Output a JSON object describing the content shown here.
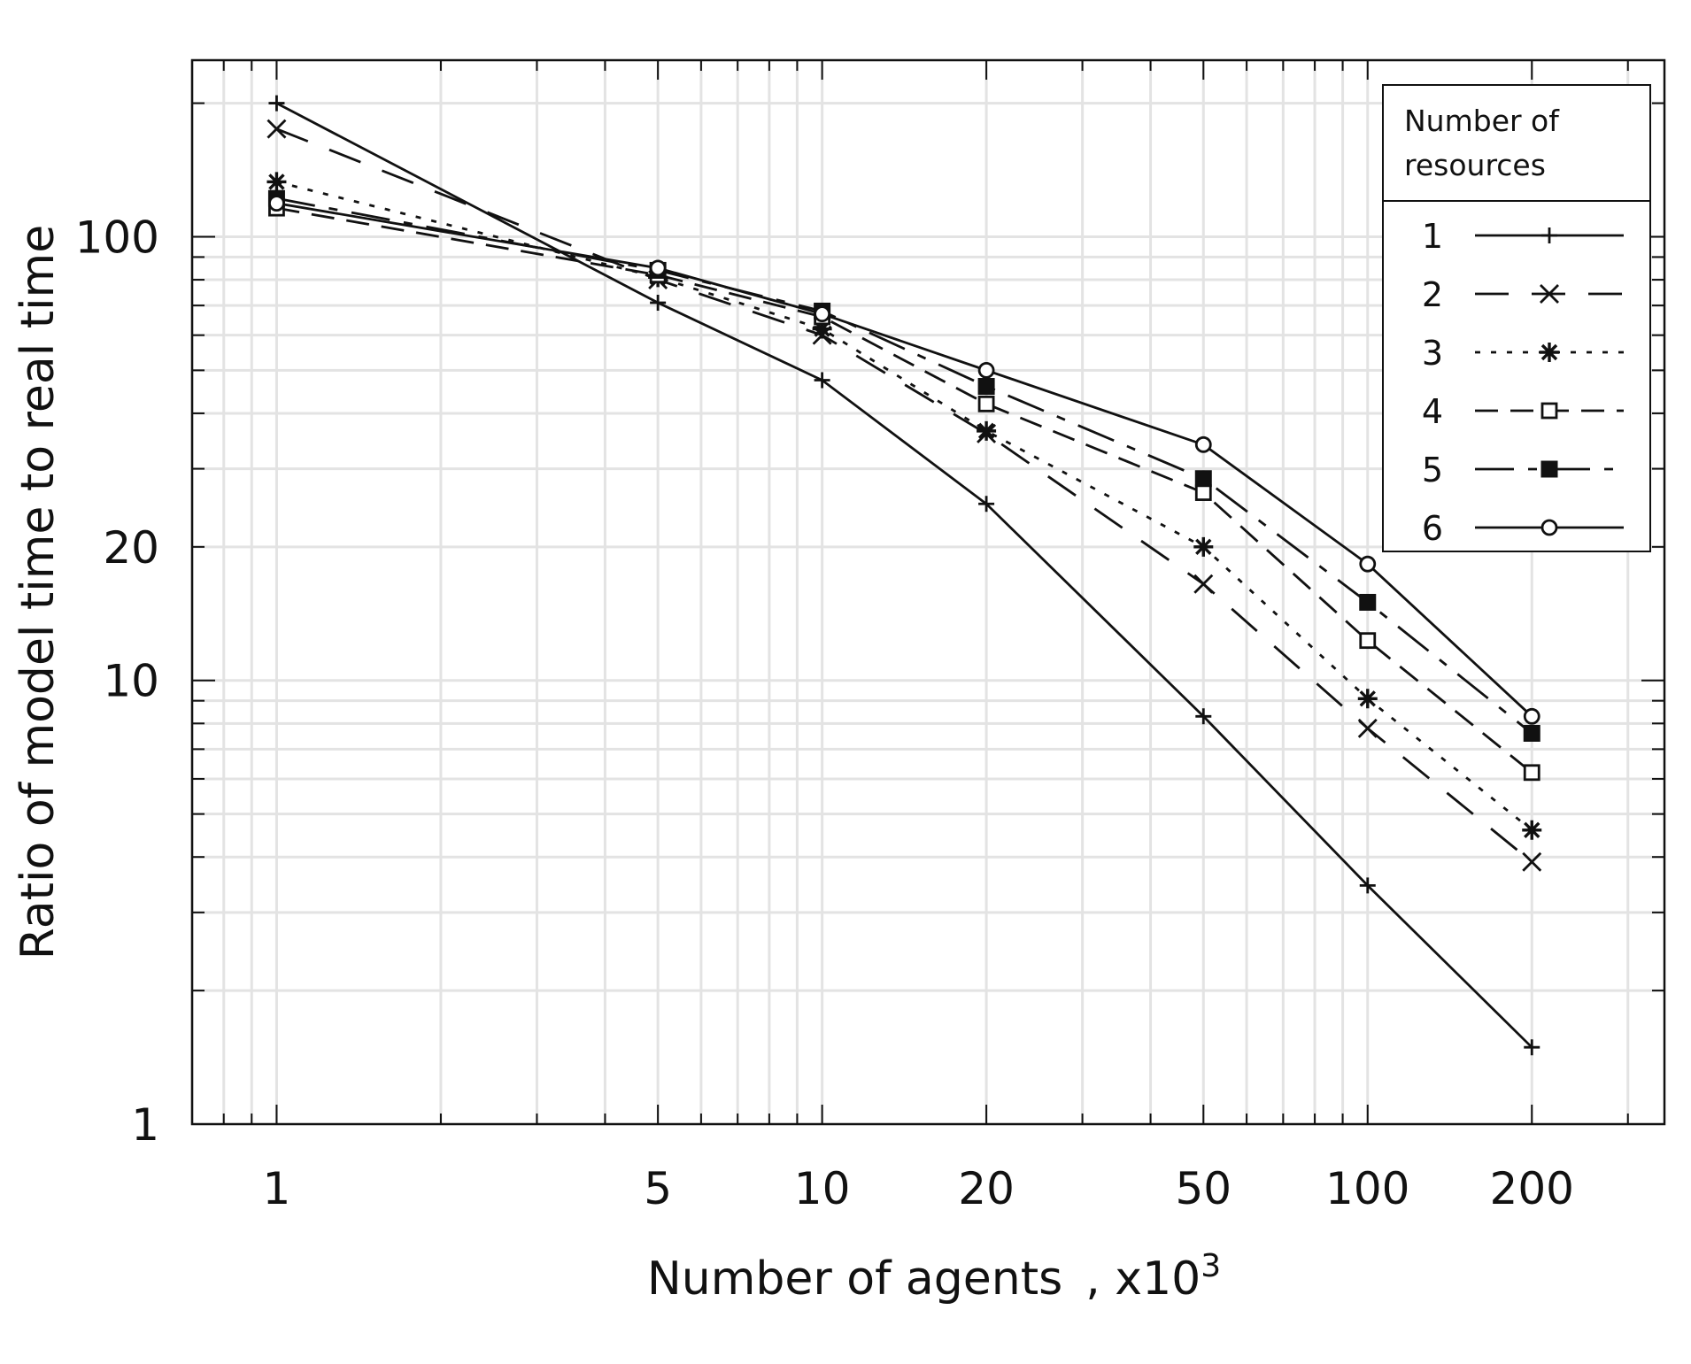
{
  "chart_data": {
    "type": "line",
    "title": "",
    "xlabel": "Number of agents",
    "xlabel_suffix": ", x10",
    "xlabel_superscript": "3",
    "ylabel": "Ratio of model time to real time",
    "x_scale": "log",
    "y_scale": "log",
    "xlim": [
      0.7,
      350
    ],
    "ylim": [
      1,
      250
    ],
    "x_ticks": [
      1,
      5,
      10,
      20,
      50,
      100,
      200
    ],
    "x_tick_labels": [
      "1",
      "5",
      "10",
      "20",
      "50",
      "100",
      "200"
    ],
    "y_ticks": [
      1,
      10,
      20,
      100
    ],
    "y_tick_labels": [
      "1",
      "10",
      "20",
      "100"
    ],
    "grid": true,
    "x": [
      1,
      5,
      10,
      20,
      50,
      100,
      200
    ],
    "legend": {
      "title_line1": "Number of",
      "title_line2": "resources",
      "placement": "top-right"
    },
    "series": [
      {
        "name": "1",
        "marker": "plus",
        "dash": "solid",
        "values": [
          200,
          71,
          47.5,
          25,
          8.3,
          3.45,
          1.49
        ]
      },
      {
        "name": "2",
        "marker": "x",
        "dash": "longdash",
        "values": [
          175,
          80,
          60,
          36,
          16.5,
          7.8,
          3.9
        ]
      },
      {
        "name": "3",
        "marker": "asterisk",
        "dash": "dotted",
        "values": [
          133,
          81,
          62,
          36.5,
          20,
          9.1,
          4.6
        ]
      },
      {
        "name": "4",
        "marker": "square-open",
        "dash": "dashed",
        "values": [
          116,
          82,
          66,
          42,
          26.5,
          12.3,
          6.2
        ]
      },
      {
        "name": "5",
        "marker": "square-filled",
        "dash": "dashdot",
        "values": [
          122,
          84,
          68,
          46,
          28.5,
          15,
          7.6
        ]
      },
      {
        "name": "6",
        "marker": "circle-open",
        "dash": "solid",
        "values": [
          119,
          85,
          67,
          50,
          34,
          18.3,
          8.3
        ]
      }
    ]
  }
}
